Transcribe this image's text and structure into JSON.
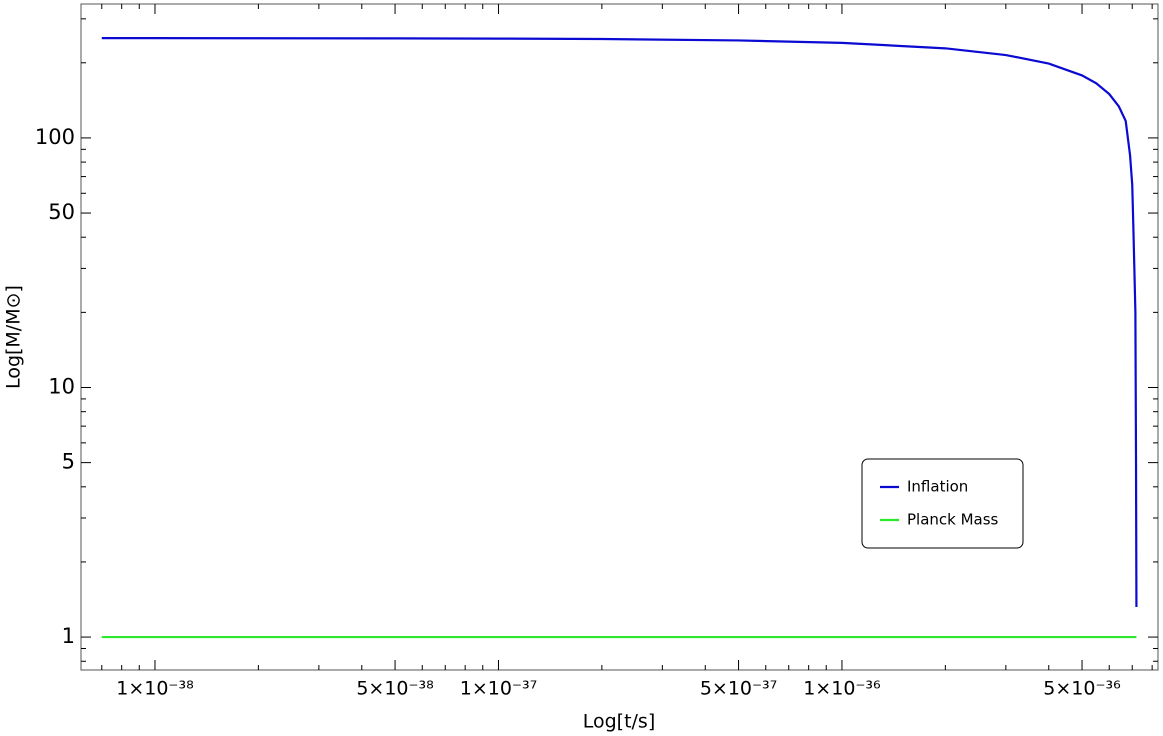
{
  "chart_data": {
    "type": "line",
    "xlabel": "Log[t/s]",
    "ylabel": "Log[M/M⊙]",
    "xscale": "log",
    "yscale": "log",
    "xlim": [
      6.09e-39,
      8.32e-36
    ],
    "ylim": [
      0.738,
      344
    ],
    "xticks": [
      {
        "value": 1e-38,
        "label": "1×10⁻³⁸"
      },
      {
        "value": 5e-38,
        "label": "5×10⁻³⁸"
      },
      {
        "value": 1e-37,
        "label": "1×10⁻³⁷"
      },
      {
        "value": 5e-37,
        "label": "5×10⁻³⁷"
      },
      {
        "value": 1e-36,
        "label": "1×10⁻³⁶"
      },
      {
        "value": 5e-36,
        "label": "5×10⁻³⁶"
      }
    ],
    "xminorticks": [
      7e-39,
      8e-39,
      9e-39,
      2e-38,
      3e-38,
      4e-38,
      6e-38,
      7e-38,
      8e-38,
      9e-38,
      2e-37,
      3e-37,
      4e-37,
      6e-37,
      7e-37,
      8e-37,
      9e-37,
      2e-36,
      3e-36,
      4e-36,
      6e-36,
      7e-36,
      8e-36
    ],
    "yticks": [
      1,
      5,
      10,
      50,
      100
    ],
    "yminorticks": [
      0.8,
      0.9,
      2,
      3,
      4,
      6,
      7,
      8,
      9,
      20,
      30,
      40,
      60,
      70,
      80,
      90,
      200,
      300
    ],
    "legend_loc": "lower right",
    "series": [
      {
        "name": "Inflation",
        "color": "#0a0ad2",
        "x": [
          7e-39,
          1e-38,
          2e-38,
          5e-38,
          1e-37,
          2e-37,
          5e-37,
          1e-36,
          2e-36,
          3e-36,
          4e-36,
          5e-36,
          5.5e-36,
          6e-36,
          6.4e-36,
          6.7e-36,
          6.9e-36,
          7e-36,
          7.05e-36,
          7.1e-36,
          7.15e-36,
          7.18e-36,
          7.2e-36
        ],
        "values": [
          251,
          251,
          250.8,
          250.5,
          250,
          249,
          245.8,
          240.4,
          228.5,
          214.8,
          198.6,
          178,
          165.6,
          149.9,
          133.6,
          117,
          85,
          65,
          45,
          30,
          20,
          5,
          1.32
        ]
      },
      {
        "name": "Planck Mass",
        "color": "#2ee82e",
        "x": [
          7e-39,
          7.2e-36
        ],
        "values": [
          1,
          1
        ]
      }
    ]
  }
}
